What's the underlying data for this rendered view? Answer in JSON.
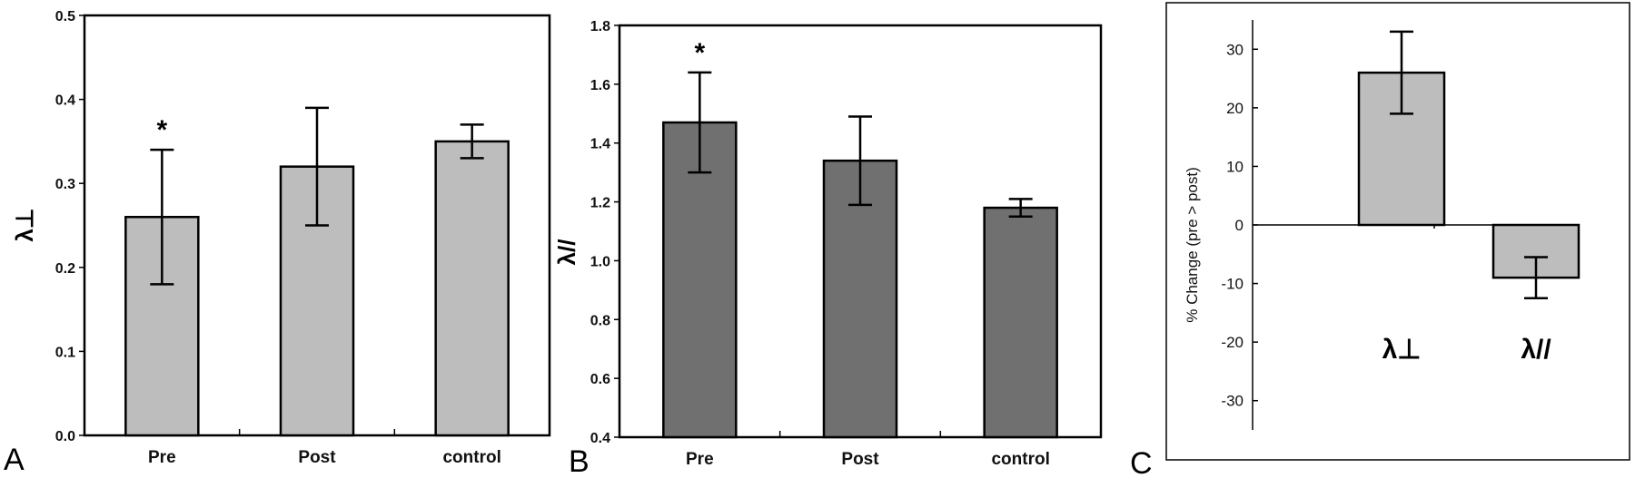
{
  "chart_data": [
    {
      "panel": "A",
      "type": "bar",
      "categories": [
        "Pre",
        "Post",
        "control"
      ],
      "values": [
        0.26,
        0.32,
        0.35
      ],
      "errors": [
        0.08,
        0.07,
        0.02
      ],
      "ylabel": "λ⊥",
      "ylim": [
        0.0,
        0.5
      ],
      "yticks": [
        "0.0",
        "0.1",
        "0.2",
        "0.3",
        "0.4",
        "0.5"
      ],
      "annotations": [
        {
          "category": "Pre",
          "text": "*"
        }
      ],
      "bar_color": "#bdbdbd",
      "grid": false
    },
    {
      "panel": "B",
      "type": "bar",
      "categories": [
        "Pre",
        "Post",
        "control"
      ],
      "values": [
        1.47,
        1.34,
        1.18
      ],
      "errors": [
        0.17,
        0.15,
        0.03
      ],
      "ylabel": "λ//",
      "ylim": [
        0.4,
        1.8
      ],
      "yticks": [
        "0.4",
        "0.6",
        "0.8",
        "1.0",
        "1.2",
        "1.4",
        "1.6",
        "1.8"
      ],
      "annotations": [
        {
          "category": "Pre",
          "text": "*"
        }
      ],
      "bar_color": "#707070",
      "grid": false
    },
    {
      "panel": "C",
      "type": "bar",
      "categories": [
        "λ⊥",
        "λ//"
      ],
      "values": [
        26,
        -9
      ],
      "errors": [
        7,
        3.5
      ],
      "ylabel": "% Change (pre > post)",
      "ylim": [
        -35,
        35
      ],
      "yticks": [
        "-30",
        "-20",
        "-10",
        "0",
        "10",
        "20",
        "30"
      ],
      "bar_color": "#bdbdbd",
      "grid": false
    }
  ]
}
